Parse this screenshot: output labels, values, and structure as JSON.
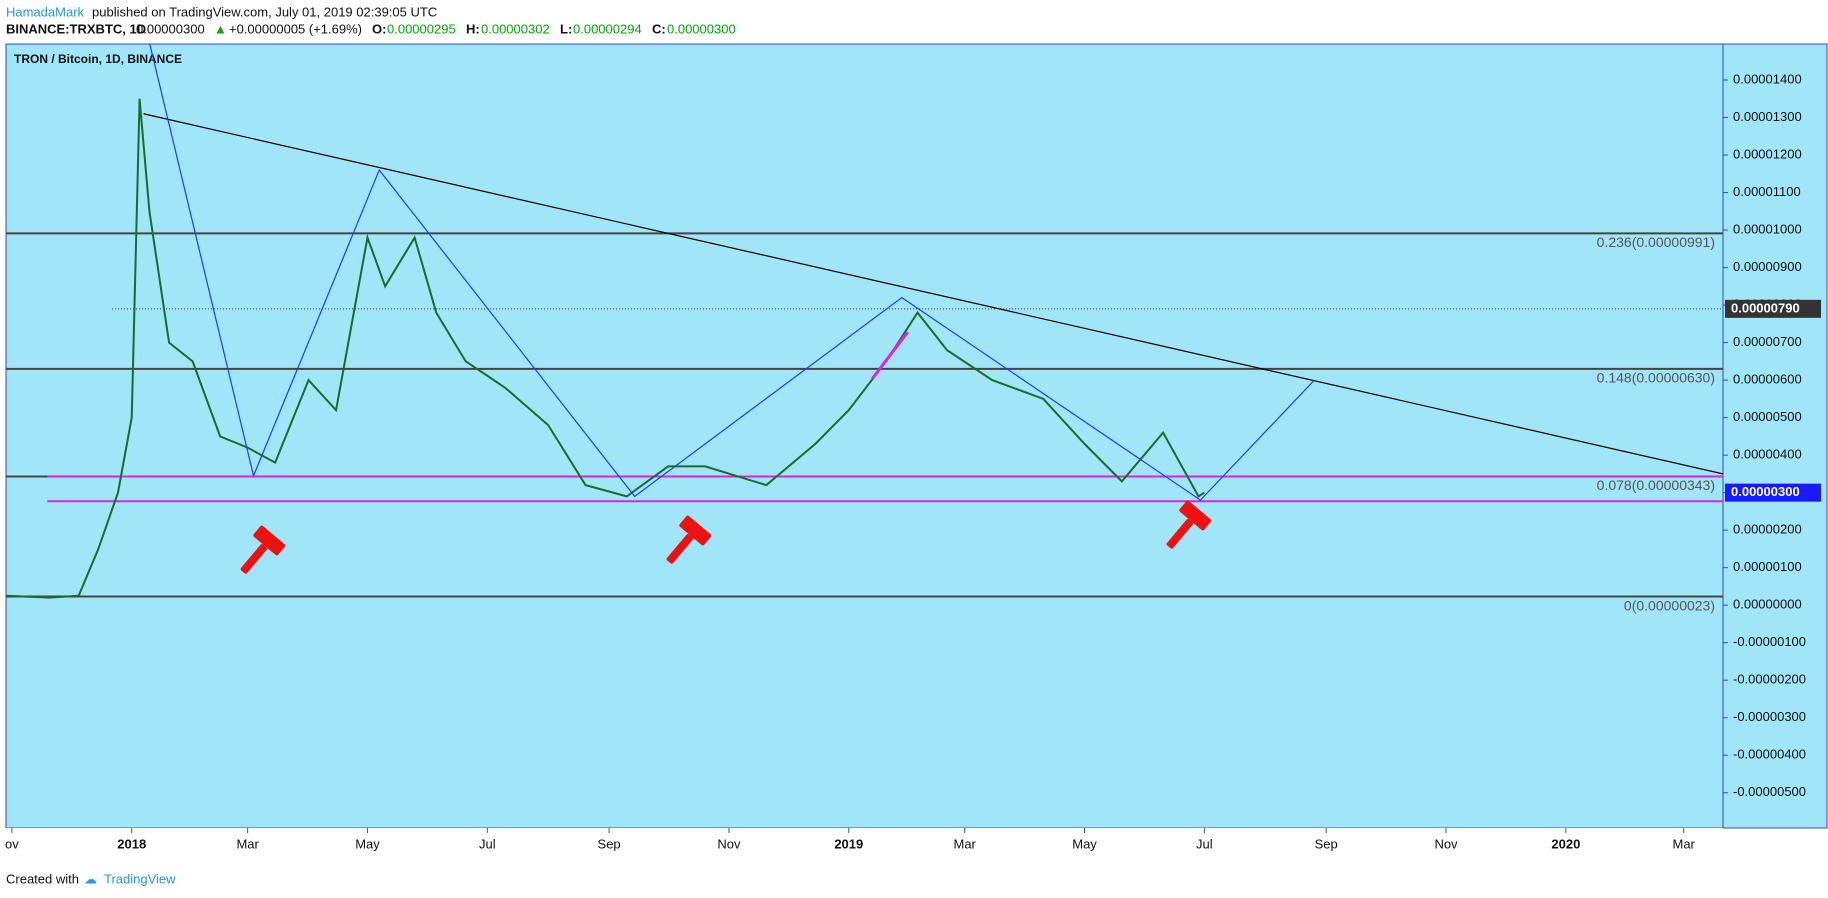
{
  "header": {
    "author": "HamadaMark",
    "published": "published on TradingView.com, July 01, 2019 02:39:05 UTC",
    "symbol": "BINANCE:TRXBTC, 1D",
    "price": "0.00000300",
    "change": "+0.00000005 (+1.69%)",
    "o_label": "O:",
    "o": "0.00000295",
    "h_label": "H:",
    "h": "0.00000302",
    "l_label": "L:",
    "l": "0.00000294",
    "c_label": "C:",
    "c": "0.00000300"
  },
  "footer": {
    "created": "Created with",
    "brand": "TradingView"
  },
  "chart_data": {
    "type": "line",
    "title": "TRON / Bitcoin, 1D, BINANCE",
    "color": "#1b6b2c",
    "x": [
      "2017-10-29",
      "2017-11-20",
      "2017-12-05",
      "2017-12-15",
      "2017-12-25",
      "2018-01-01",
      "2018-01-05",
      "2018-01-10",
      "2018-01-20",
      "2018-02-01",
      "2018-02-15",
      "2018-03-01",
      "2018-03-15",
      "2018-04-01",
      "2018-04-15",
      "2018-05-01",
      "2018-05-10",
      "2018-05-25",
      "2018-06-05",
      "2018-06-20",
      "2018-07-10",
      "2018-08-01",
      "2018-08-20",
      "2018-09-10",
      "2018-10-01",
      "2018-10-20",
      "2018-11-20",
      "2018-12-15",
      "2019-01-01",
      "2019-01-20",
      "2019-02-05",
      "2019-02-20",
      "2019-03-15",
      "2019-04-10",
      "2019-05-01",
      "2019-05-20",
      "2019-06-10",
      "2019-06-28",
      "2019-07-01"
    ],
    "values": [
      2.5e-07,
      2e-07,
      2.5e-07,
      1.5e-06,
      3e-06,
      5e-06,
      1.35e-05,
      1.05e-05,
      7e-06,
      6.5e-06,
      4.5e-06,
      4.2e-06,
      3.8e-06,
      6e-06,
      5.2e-06,
      9.8e-06,
      8.5e-06,
      9.8e-06,
      7.8e-06,
      6.5e-06,
      5.8e-06,
      4.8e-06,
      3.2e-06,
      2.9e-06,
      3.7e-06,
      3.7e-06,
      3.2e-06,
      4.3e-06,
      5.2e-06,
      6.5e-06,
      7.8e-06,
      6.8e-06,
      6e-06,
      5.5e-06,
      4.3e-06,
      3.3e-06,
      4.6e-06,
      2.9e-06,
      3e-06
    ],
    "xlim": [
      "2017-10-29",
      "2020-03-21"
    ],
    "xticks": [
      {
        "value": "2017-11-01",
        "label": "ov"
      },
      {
        "value": "2018-01-01",
        "label": "2018"
      },
      {
        "value": "2018-03-01",
        "label": "Mar"
      },
      {
        "value": "2018-05-01",
        "label": "May"
      },
      {
        "value": "2018-07-01",
        "label": "Jul"
      },
      {
        "value": "2018-09-01",
        "label": "Sep"
      },
      {
        "value": "2018-11-01",
        "label": "Nov"
      },
      {
        "value": "2019-01-01",
        "label": "2019"
      },
      {
        "value": "2019-03-01",
        "label": "Mar"
      },
      {
        "value": "2019-05-01",
        "label": "May"
      },
      {
        "value": "2019-07-01",
        "label": "Jul"
      },
      {
        "value": "2019-09-01",
        "label": "Sep"
      },
      {
        "value": "2019-11-01",
        "label": "Nov"
      },
      {
        "value": "2020-01-01",
        "label": "2020"
      },
      {
        "value": "2020-03-01",
        "label": "Mar"
      }
    ],
    "ylim": [
      -5.94e-06,
      1.496e-05
    ],
    "yticks": [
      {
        "value": 1.4e-05,
        "label": "0.00001400"
      },
      {
        "value": 1.3e-05,
        "label": "0.00001300"
      },
      {
        "value": 1.2e-05,
        "label": "0.00001200"
      },
      {
        "value": 1.1e-05,
        "label": "0.00001100"
      },
      {
        "value": 1e-05,
        "label": "0.00001000"
      },
      {
        "value": 9e-06,
        "label": "0.00000900"
      },
      {
        "value": 8e-06,
        "label": "0.00000800"
      },
      {
        "value": 7e-06,
        "label": "0.00000700"
      },
      {
        "value": 6e-06,
        "label": "0.00000600"
      },
      {
        "value": 5e-06,
        "label": "0.00000500"
      },
      {
        "value": 4e-06,
        "label": "0.00000400"
      },
      {
        "value": 3e-06,
        "label": "0.00000300"
      },
      {
        "value": 2e-06,
        "label": "0.00000200"
      },
      {
        "value": 1e-06,
        "label": "0.00000100"
      },
      {
        "value": 0,
        "label": "0.00000000"
      },
      {
        "value": -1e-06,
        "label": "-0.00000100"
      },
      {
        "value": -2e-06,
        "label": "-0.00000200"
      },
      {
        "value": -3e-06,
        "label": "-0.00000300"
      },
      {
        "value": -4e-06,
        "label": "-0.00000400"
      },
      {
        "value": -5e-06,
        "label": "-0.00000500"
      }
    ],
    "fib_levels": [
      {
        "value": 9.91e-06,
        "label": "0.236(0.00000991)"
      },
      {
        "value": 6.3e-06,
        "label": "0.148(0.00000630)"
      },
      {
        "value": 3.43e-06,
        "label": "0.078(0.00000343)"
      },
      {
        "value": 2.3e-07,
        "label": "0(0.00000023)"
      }
    ],
    "price_labels": [
      {
        "value": 7.9e-06,
        "label": "0.00000790",
        "color": "#333333"
      },
      {
        "value": 3e-06,
        "label": "0.00000300",
        "color": "#1a1aff"
      }
    ],
    "support_lines": {
      "color": "#e020e0",
      "start": "2017-11-19",
      "values": [
        3.43e-06,
        2.77e-06
      ]
    },
    "dotted_line": {
      "start": "2017-12-22",
      "value": 7.9e-06
    },
    "trendline": {
      "color": "#000000",
      "x": [
        "2018-01-07",
        "2020-03-21"
      ],
      "values": [
        1.31e-05,
        3.5e-06
      ]
    },
    "zigzag": {
      "color": "#1a3cff",
      "x": [
        "2018-01-10",
        "2018-03-04",
        "2018-05-07",
        "2018-09-14",
        "2019-01-28",
        "2019-06-29",
        "2019-08-26"
      ],
      "values": [
        1.5e-05,
        3.45e-06,
        1.16e-05,
        2.9e-06,
        8.2e-06,
        2.8e-06,
        6e-06
      ]
    },
    "segment": {
      "color": "#e020e0",
      "x": [
        "2019-01-13",
        "2019-01-31"
      ],
      "values": [
        6.04e-06,
        7.28e-06
      ]
    }
  }
}
